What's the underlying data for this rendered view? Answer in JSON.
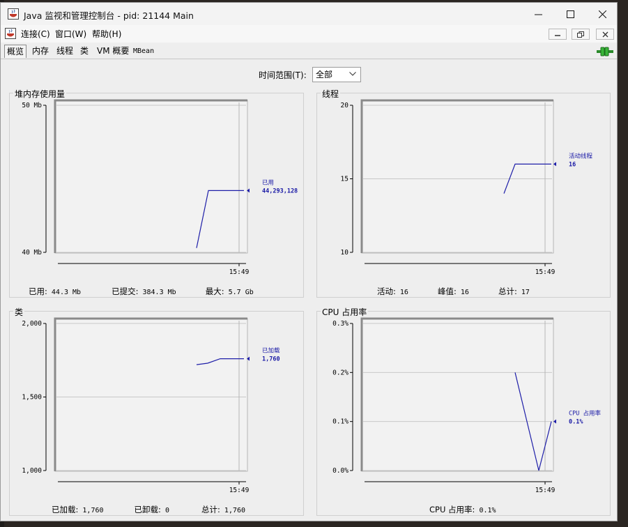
{
  "window": {
    "title": "Java 监视和管理控制台 - pid: 21144 Main"
  },
  "menu": {
    "items": [
      "连接(C)",
      "窗口(W)",
      "帮助(H)"
    ]
  },
  "tabs": [
    "概览",
    "内存",
    "线程",
    "类",
    "VM 概要",
    "MBean"
  ],
  "time_range": {
    "label": "时间范围(T):",
    "value": "全部"
  },
  "colors": {
    "series": "#1e1ea8",
    "grid": "#c8c8c8",
    "frame": "#7a7a7a"
  },
  "panels": {
    "heap": {
      "title": "堆内存使用量",
      "summary": [
        {
          "key": "已用:",
          "value": "44.3  Mb"
        },
        {
          "key": "已提交:",
          "value": "384.3  Mb"
        },
        {
          "key": "最大:",
          "value": "5.7  Gb"
        }
      ]
    },
    "threads": {
      "title": "线程",
      "summary": [
        {
          "key": "活动:",
          "value": "16"
        },
        {
          "key": "峰值:",
          "value": "16"
        },
        {
          "key": "总计:",
          "value": "17"
        }
      ]
    },
    "classes": {
      "title": "类",
      "summary": [
        {
          "key": "已加载:",
          "value": "1,760"
        },
        {
          "key": "已卸载:",
          "value": "0"
        },
        {
          "key": "总计:",
          "value": "1,760"
        }
      ]
    },
    "cpu": {
      "title": "CPU 占用率",
      "summary": [
        {
          "key": "CPU 占用率:",
          "value": "0.1%"
        }
      ]
    }
  },
  "chart_data": [
    {
      "id": "heap",
      "type": "line",
      "y_ticks": [
        "50 Mb",
        "40 Mb"
      ],
      "ylim": [
        40,
        50
      ],
      "x_tick": "15:49",
      "series": [
        {
          "name": "已用",
          "current_label": "44,293,128",
          "values": [
            40.3,
            44.2,
            44.2,
            44.2
          ]
        }
      ]
    },
    {
      "id": "threads",
      "type": "line",
      "y_ticks": [
        "20",
        "15",
        "10"
      ],
      "ylim": [
        10,
        20
      ],
      "x_tick": "15:49",
      "series": [
        {
          "name": "活动线程",
          "current_label": "16",
          "values": [
            14,
            16,
            16,
            16,
            16
          ]
        }
      ]
    },
    {
      "id": "classes",
      "type": "line",
      "y_ticks": [
        "2,000",
        "1,500",
        "1,000"
      ],
      "ylim": [
        1000,
        2000
      ],
      "x_tick": "15:49",
      "series": [
        {
          "name": "已加载",
          "current_label": "1,760",
          "values": [
            1720,
            1730,
            1760,
            1760,
            1760
          ]
        }
      ]
    },
    {
      "id": "cpu",
      "type": "line",
      "y_ticks": [
        "0.3%",
        "0.2%",
        "0.1%",
        "0.0%"
      ],
      "ylim": [
        0,
        0.3
      ],
      "x_tick": "15:49",
      "series": [
        {
          "name": "CPU 占用率",
          "current_label": "0.1%",
          "values": [
            0.2,
            0.0,
            0.1
          ]
        }
      ]
    }
  ]
}
